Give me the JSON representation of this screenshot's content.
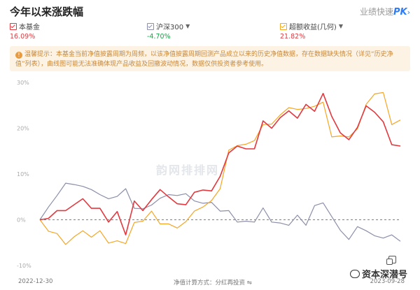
{
  "header": {
    "title": "今年以来涨跌幅",
    "pk_text": "业绩快速",
    "pk_mark": "PK"
  },
  "legend": [
    {
      "name": "本基金",
      "value": "16.09%",
      "color": "#e2393f",
      "value_color": "#e2393f",
      "has_caret": false
    },
    {
      "name": "沪深300",
      "value": "-4.70%",
      "color": "#8b8fa8",
      "value_color": "#1aa34a",
      "has_caret": true
    },
    {
      "name": "超额收益(几何)",
      "value": "21.82%",
      "color": "#f5a623",
      "value_color": "#e2393f",
      "has_caret": true
    }
  ],
  "notice": {
    "icon": "!",
    "text": "温馨提示：本基金当前净值披露周期为周频，以该净值披露周期回测产品成立以来的历史净值数据，存在数据缺失情况（详见“历史净值”列表），曲线图可能无法准确体现产品收益及回撤波动情况，数据仅供投资者参考使用。"
  },
  "watermark": "韵网排排网",
  "footer": {
    "start_date": "2022-12-30",
    "calc_mode": "净值计算方式：分红再投资",
    "end_date": "2023-09-28"
  },
  "overlay": {
    "label": "资本深潜号",
    "icon": "wechat-icon"
  },
  "chart_data": {
    "type": "line",
    "ylim": [
      -10,
      30
    ],
    "y_ticks": [
      30,
      20,
      10,
      0,
      -10
    ],
    "y_tick_labels": [
      "30%",
      "20%",
      "10%",
      "0%",
      "-10%"
    ],
    "x_start": "2022-12-30",
    "x_end": "2023-09-28",
    "grid": false,
    "series": [
      {
        "name": "本基金",
        "color": "#e2393f",
        "values": [
          0,
          0.3,
          2,
          2,
          3.3,
          4.6,
          2.5,
          2.5,
          -0.5,
          1.8,
          -3.3,
          4.1,
          2,
          4.4,
          6.6,
          5,
          3.5,
          3.3,
          6,
          6.5,
          6.3,
          9.5,
          14.6,
          16.1,
          15.5,
          15.5,
          21.6,
          20,
          22.3,
          23.8,
          22.2,
          25.2,
          23.7,
          27.6,
          22.6,
          19,
          17.5,
          20.2,
          24.9,
          23.5,
          21.4,
          16.4,
          16.1
        ]
      },
      {
        "name": "沪深300",
        "color": "#8b8fa8",
        "values": [
          0,
          2.8,
          5.3,
          8,
          7.7,
          7.3,
          6.6,
          5.5,
          4.6,
          5.1,
          6.8,
          2.5,
          2.4,
          3.2,
          4.7,
          5.5,
          5.3,
          5.7,
          4.1,
          3.6,
          3.8,
          1.9,
          2,
          -0.5,
          -0.3,
          -0.5,
          2.6,
          -0.5,
          -0.7,
          -1.2,
          1,
          -1.2,
          3.1,
          3.7,
          0.7,
          -2.3,
          -4.3,
          -1.5,
          -2.4,
          -3.5,
          -4,
          -3.3,
          -4.7
        ]
      },
      {
        "name": "超额收益(几何)",
        "color": "#f5a623",
        "values": [
          0,
          -2.5,
          -3,
          -5.4,
          -3.7,
          -2.4,
          -3.8,
          -2.4,
          -5.1,
          -4.6,
          -5.2,
          -0.6,
          -0.3,
          1.9,
          -0.9,
          -0.9,
          -1.8,
          -0.4,
          1.9,
          2.8,
          4.2,
          6.8,
          15.2,
          16.2,
          16.5,
          17.3,
          20.8,
          20.9,
          22.9,
          24.5,
          24.1,
          24.3,
          24.8,
          25.7,
          18.1,
          18.3,
          18.1,
          19.9,
          25.2,
          27.5,
          27.8,
          20.8,
          21.8
        ]
      }
    ]
  }
}
